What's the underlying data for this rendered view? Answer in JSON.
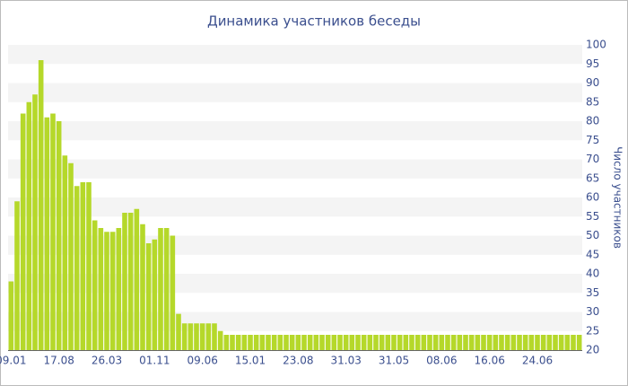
{
  "chart_data": {
    "type": "bar",
    "title": "Динамика участников беседы",
    "y_axis_label": "Число участников",
    "categories": [
      "09.01",
      null,
      null,
      null,
      null,
      null,
      null,
      null,
      "17.08",
      null,
      null,
      null,
      null,
      null,
      null,
      null,
      "26.03",
      null,
      null,
      null,
      null,
      null,
      null,
      null,
      "01.11",
      null,
      null,
      null,
      null,
      null,
      null,
      null,
      "09.06",
      null,
      null,
      null,
      null,
      null,
      null,
      null,
      "15.01",
      null,
      null,
      null,
      null,
      null,
      null,
      null,
      "23.08",
      null,
      null,
      null,
      null,
      null,
      null,
      null,
      "31.03",
      null,
      null,
      null,
      null,
      null,
      null,
      null,
      "31.05",
      null,
      null,
      null,
      null,
      null,
      null,
      null,
      "08.06",
      null,
      null,
      null,
      null,
      null,
      null,
      null,
      "16.06",
      null,
      null,
      null,
      null,
      null,
      null,
      null,
      "24.06",
      null,
      null,
      null,
      null,
      null,
      null,
      null
    ],
    "values": [
      38,
      59,
      82,
      85,
      87,
      96,
      81,
      82,
      80,
      71,
      69,
      63,
      64,
      64,
      54,
      52,
      51,
      51,
      52,
      56,
      56,
      57,
      53,
      48,
      49,
      52,
      52,
      50,
      29.5,
      27,
      27,
      27,
      27,
      27,
      27,
      25,
      24,
      24,
      24,
      24,
      24,
      24,
      24,
      24,
      24,
      24,
      24,
      24,
      24,
      24,
      24,
      24,
      24,
      24,
      24,
      24,
      24,
      24,
      24,
      24,
      24,
      24,
      24,
      24,
      24,
      24,
      24,
      24,
      24,
      24,
      24,
      24,
      24,
      24,
      24,
      24,
      24,
      24,
      24,
      24,
      24,
      24,
      24,
      24,
      24,
      24,
      24,
      24,
      24,
      24,
      24,
      24,
      24,
      24,
      24,
      24
    ],
    "color": "#b5d82a",
    "ylim": [
      20,
      100
    ],
    "yticks": [
      20,
      25,
      30,
      35,
      40,
      45,
      50,
      55,
      60,
      65,
      70,
      75,
      80,
      85,
      90,
      95,
      100
    ],
    "grid": true
  }
}
